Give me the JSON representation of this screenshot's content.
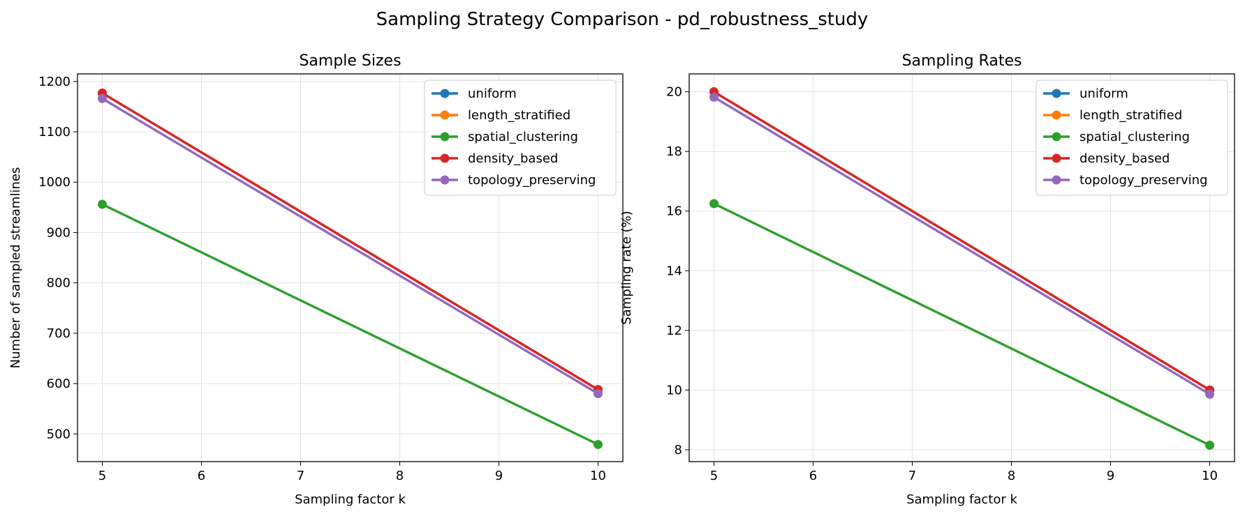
{
  "figure": {
    "suptitle": "Sampling Strategy Comparison - pd_robustness_study"
  },
  "colors": {
    "uniform": "#1f77b4",
    "length_stratified": "#ff7f0e",
    "spatial_clustering": "#2ca02c",
    "density_based": "#d62728",
    "topology_preserving": "#9467bd"
  },
  "chart_data": [
    {
      "type": "line",
      "title": "Sample Sizes",
      "xlabel": "Sampling factor k",
      "ylabel": "Number of sampled streamlines",
      "x": [
        5,
        10
      ],
      "xlim": [
        4.75,
        10.25
      ],
      "ylim": [
        445,
        1215
      ],
      "xticks": [
        5,
        6,
        7,
        8,
        9,
        10
      ],
      "yticks": [
        500,
        600,
        700,
        800,
        900,
        1000,
        1100,
        1200
      ],
      "grid": true,
      "legend_position": "top-right",
      "series": [
        {
          "name": "uniform",
          "values": [
            1177,
            588
          ]
        },
        {
          "name": "length_stratified",
          "values": [
            1177,
            588
          ]
        },
        {
          "name": "spatial_clustering",
          "values": [
            956,
            479
          ]
        },
        {
          "name": "density_based",
          "values": [
            1177,
            588
          ]
        },
        {
          "name": "topology_preserving",
          "values": [
            1166,
            580
          ]
        }
      ]
    },
    {
      "type": "line",
      "title": "Sampling Rates",
      "xlabel": "Sampling factor k",
      "ylabel": "Sampling rate (%)",
      "x": [
        5,
        10
      ],
      "xlim": [
        4.75,
        10.25
      ],
      "ylim": [
        7.6,
        20.6
      ],
      "xticks": [
        5,
        6,
        7,
        8,
        9,
        10
      ],
      "yticks": [
        8,
        10,
        12,
        14,
        16,
        18,
        20
      ],
      "grid": true,
      "legend_position": "top-right",
      "series": [
        {
          "name": "uniform",
          "values": [
            20.0,
            10.0
          ]
        },
        {
          "name": "length_stratified",
          "values": [
            20.0,
            10.0
          ]
        },
        {
          "name": "spatial_clustering",
          "values": [
            16.25,
            8.15
          ]
        },
        {
          "name": "density_based",
          "values": [
            20.0,
            10.0
          ]
        },
        {
          "name": "topology_preserving",
          "values": [
            19.82,
            9.86
          ]
        }
      ]
    }
  ]
}
